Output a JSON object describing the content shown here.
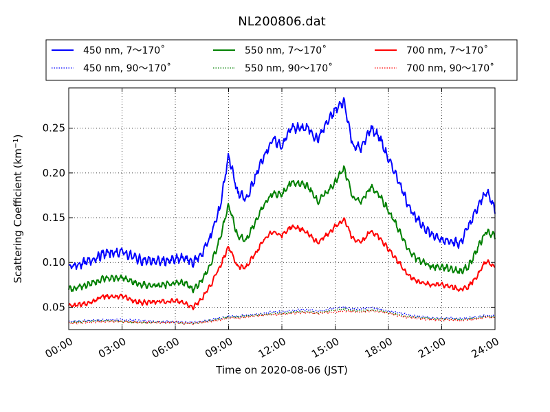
{
  "chart_data": {
    "type": "line",
    "title": "NL200806.dat",
    "xlabel": "Time on 2020-08-06 (JST)",
    "ylabel": "Scattering Coefficient (km",
    "ylabel_exponent": "−1",
    "ylabel_suffix": ")",
    "xlim": [
      0,
      24
    ],
    "ylim": [
      0.025,
      0.295
    ],
    "x_ticks": [
      0,
      3,
      6,
      9,
      12,
      15,
      18,
      21,
      24
    ],
    "x_tick_labels": [
      "00:00",
      "03:00",
      "06:00",
      "09:00",
      "12:00",
      "15:00",
      "18:00",
      "21:00",
      "24:00"
    ],
    "y_ticks": [
      0.05,
      0.1,
      0.15,
      0.2,
      0.25
    ],
    "y_tick_labels": [
      "0.05",
      "0.10",
      "0.15",
      "0.20",
      "0.25"
    ],
    "grid": true,
    "legend_position": "top (above plot), 3 columns",
    "x": [
      0,
      1,
      2,
      3,
      4,
      5,
      6,
      6.5,
      7,
      7.5,
      8,
      8.5,
      9,
      9.5,
      10,
      10.5,
      11,
      11.5,
      12,
      12.5,
      13,
      13.5,
      14,
      14.5,
      15,
      15.5,
      16,
      16.5,
      17,
      17.5,
      18,
      18.5,
      19,
      19.5,
      20,
      20.5,
      21,
      21.5,
      22,
      22.5,
      23,
      23.5,
      24
    ],
    "series": [
      {
        "name": "450 nm, 7～170˚",
        "color": "#0000ff",
        "style": "solid",
        "values": [
          0.095,
          0.1,
          0.11,
          0.112,
          0.103,
          0.101,
          0.103,
          0.105,
          0.1,
          0.11,
          0.13,
          0.16,
          0.22,
          0.178,
          0.17,
          0.195,
          0.22,
          0.237,
          0.23,
          0.25,
          0.25,
          0.25,
          0.237,
          0.255,
          0.27,
          0.28,
          0.23,
          0.228,
          0.25,
          0.24,
          0.215,
          0.195,
          0.17,
          0.15,
          0.14,
          0.13,
          0.125,
          0.125,
          0.12,
          0.14,
          0.16,
          0.18,
          0.16
        ]
      },
      {
        "name": "550 nm, 7～170˚",
        "color": "#008000",
        "style": "solid",
        "values": [
          0.07,
          0.075,
          0.082,
          0.083,
          0.075,
          0.074,
          0.076,
          0.078,
          0.07,
          0.08,
          0.098,
          0.125,
          0.165,
          0.13,
          0.125,
          0.145,
          0.165,
          0.178,
          0.175,
          0.19,
          0.188,
          0.185,
          0.168,
          0.178,
          0.19,
          0.205,
          0.172,
          0.168,
          0.185,
          0.175,
          0.158,
          0.14,
          0.118,
          0.105,
          0.1,
          0.095,
          0.095,
          0.093,
          0.09,
          0.095,
          0.115,
          0.135,
          0.13
        ]
      },
      {
        "name": "700 nm, 7～170˚",
        "color": "#ff0000",
        "style": "solid",
        "values": [
          0.051,
          0.054,
          0.062,
          0.062,
          0.055,
          0.056,
          0.057,
          0.055,
          0.05,
          0.06,
          0.075,
          0.095,
          0.118,
          0.095,
          0.095,
          0.11,
          0.125,
          0.135,
          0.13,
          0.14,
          0.138,
          0.132,
          0.122,
          0.13,
          0.14,
          0.148,
          0.126,
          0.123,
          0.135,
          0.128,
          0.115,
          0.102,
          0.088,
          0.08,
          0.077,
          0.075,
          0.075,
          0.074,
          0.07,
          0.073,
          0.085,
          0.102,
          0.095
        ]
      },
      {
        "name": "450 nm, 90～170˚",
        "color": "#0000ff",
        "style": "dotted",
        "values": [
          0.034,
          0.035,
          0.036,
          0.036,
          0.035,
          0.034,
          0.034,
          0.033,
          0.033,
          0.034,
          0.036,
          0.038,
          0.04,
          0.04,
          0.041,
          0.042,
          0.043,
          0.045,
          0.045,
          0.046,
          0.047,
          0.047,
          0.046,
          0.047,
          0.049,
          0.05,
          0.048,
          0.048,
          0.05,
          0.048,
          0.046,
          0.044,
          0.042,
          0.04,
          0.039,
          0.038,
          0.038,
          0.038,
          0.037,
          0.038,
          0.039,
          0.041,
          0.04
        ]
      },
      {
        "name": "550 nm, 90～170˚",
        "color": "#008000",
        "style": "dotted",
        "values": [
          0.033,
          0.034,
          0.035,
          0.034,
          0.033,
          0.033,
          0.033,
          0.032,
          0.032,
          0.033,
          0.035,
          0.037,
          0.039,
          0.039,
          0.04,
          0.041,
          0.042,
          0.043,
          0.043,
          0.044,
          0.045,
          0.045,
          0.044,
          0.045,
          0.047,
          0.048,
          0.046,
          0.046,
          0.047,
          0.046,
          0.044,
          0.042,
          0.04,
          0.039,
          0.038,
          0.037,
          0.037,
          0.037,
          0.036,
          0.037,
          0.038,
          0.04,
          0.039
        ]
      },
      {
        "name": "700 nm, 90～170˚",
        "color": "#ff0000",
        "style": "dotted",
        "values": [
          0.032,
          0.033,
          0.034,
          0.034,
          0.033,
          0.033,
          0.033,
          0.032,
          0.032,
          0.033,
          0.034,
          0.036,
          0.038,
          0.038,
          0.039,
          0.04,
          0.041,
          0.042,
          0.042,
          0.043,
          0.044,
          0.044,
          0.043,
          0.044,
          0.045,
          0.046,
          0.045,
          0.045,
          0.046,
          0.045,
          0.043,
          0.041,
          0.039,
          0.038,
          0.037,
          0.036,
          0.036,
          0.036,
          0.035,
          0.036,
          0.037,
          0.039,
          0.038
        ]
      }
    ],
    "legend_order": [
      0,
      1,
      2,
      3,
      4,
      5
    ]
  }
}
